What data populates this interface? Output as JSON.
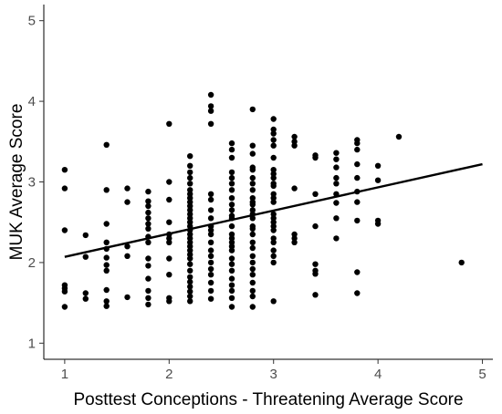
{
  "chart_data": {
    "type": "scatter",
    "xlabel": "Posttest Conceptions - Threatening Average Score",
    "ylabel": "MUK Average Score",
    "xlim": [
      0.8,
      5.1
    ],
    "ylim": [
      0.8,
      5.2
    ],
    "x_ticks": [
      "1",
      "2",
      "3",
      "4",
      "5"
    ],
    "y_ticks": [
      "1",
      "2",
      "3",
      "4",
      "5"
    ],
    "grid": false,
    "point_color": "#000000",
    "trend_line": {
      "x": [
        1.0,
        5.0
      ],
      "y": [
        2.07,
        3.22
      ]
    },
    "points": [
      [
        1.0,
        3.15
      ],
      [
        1.0,
        2.92
      ],
      [
        1.0,
        2.4
      ],
      [
        1.0,
        1.72
      ],
      [
        1.0,
        1.68
      ],
      [
        1.0,
        1.64
      ],
      [
        1.0,
        1.45
      ],
      [
        1.2,
        2.34
      ],
      [
        1.2,
        2.07
      ],
      [
        1.2,
        1.62
      ],
      [
        1.2,
        1.55
      ],
      [
        1.4,
        3.46
      ],
      [
        1.4,
        2.9
      ],
      [
        1.4,
        2.48
      ],
      [
        1.4,
        2.25
      ],
      [
        1.4,
        2.17
      ],
      [
        1.4,
        2.06
      ],
      [
        1.4,
        1.97
      ],
      [
        1.4,
        1.9
      ],
      [
        1.4,
        1.66
      ],
      [
        1.4,
        1.52
      ],
      [
        1.4,
        1.46
      ],
      [
        1.6,
        2.92
      ],
      [
        1.6,
        2.75
      ],
      [
        1.6,
        2.2
      ],
      [
        1.6,
        2.08
      ],
      [
        1.6,
        1.57
      ],
      [
        1.8,
        2.88
      ],
      [
        1.8,
        2.76
      ],
      [
        1.8,
        2.7
      ],
      [
        1.8,
        2.62
      ],
      [
        1.8,
        2.55
      ],
      [
        1.8,
        2.48
      ],
      [
        1.8,
        2.42
      ],
      [
        1.8,
        2.32
      ],
      [
        1.8,
        2.25
      ],
      [
        1.8,
        2.05
      ],
      [
        1.8,
        1.96
      ],
      [
        1.8,
        1.8
      ],
      [
        1.8,
        1.65
      ],
      [
        1.8,
        1.56
      ],
      [
        1.8,
        1.48
      ],
      [
        2.0,
        3.72
      ],
      [
        2.0,
        3.0
      ],
      [
        2.0,
        2.78
      ],
      [
        2.0,
        2.5
      ],
      [
        2.0,
        2.35
      ],
      [
        2.0,
        2.3
      ],
      [
        2.0,
        2.25
      ],
      [
        2.0,
        2.05
      ],
      [
        2.0,
        1.85
      ],
      [
        2.0,
        1.56
      ],
      [
        2.0,
        1.52
      ],
      [
        2.2,
        3.32
      ],
      [
        2.2,
        3.2
      ],
      [
        2.2,
        3.12
      ],
      [
        2.2,
        3.05
      ],
      [
        2.2,
        2.98
      ],
      [
        2.2,
        2.9
      ],
      [
        2.2,
        2.85
      ],
      [
        2.2,
        2.8
      ],
      [
        2.2,
        2.75
      ],
      [
        2.2,
        2.7
      ],
      [
        2.2,
        2.65
      ],
      [
        2.2,
        2.6
      ],
      [
        2.2,
        2.55
      ],
      [
        2.2,
        2.5
      ],
      [
        2.2,
        2.45
      ],
      [
        2.2,
        2.4
      ],
      [
        2.2,
        2.35
      ],
      [
        2.2,
        2.3
      ],
      [
        2.2,
        2.25
      ],
      [
        2.2,
        2.2
      ],
      [
        2.2,
        2.15
      ],
      [
        2.2,
        2.1
      ],
      [
        2.2,
        2.05
      ],
      [
        2.2,
        1.98
      ],
      [
        2.2,
        1.9
      ],
      [
        2.2,
        1.82
      ],
      [
        2.2,
        1.76
      ],
      [
        2.2,
        1.7
      ],
      [
        2.2,
        1.64
      ],
      [
        2.2,
        1.58
      ],
      [
        2.2,
        1.52
      ],
      [
        2.4,
        4.08
      ],
      [
        2.4,
        3.94
      ],
      [
        2.4,
        3.88
      ],
      [
        2.4,
        3.72
      ],
      [
        2.4,
        2.85
      ],
      [
        2.4,
        2.78
      ],
      [
        2.4,
        2.65
      ],
      [
        2.4,
        2.55
      ],
      [
        2.4,
        2.45
      ],
      [
        2.4,
        2.4
      ],
      [
        2.4,
        2.35
      ],
      [
        2.4,
        2.25
      ],
      [
        2.4,
        2.15
      ],
      [
        2.4,
        2.08
      ],
      [
        2.4,
        2.0
      ],
      [
        2.4,
        1.92
      ],
      [
        2.4,
        1.85
      ],
      [
        2.4,
        1.75
      ],
      [
        2.4,
        1.65
      ],
      [
        2.4,
        1.55
      ],
      [
        2.6,
        3.48
      ],
      [
        2.6,
        3.4
      ],
      [
        2.6,
        3.3
      ],
      [
        2.6,
        3.12
      ],
      [
        2.6,
        3.05
      ],
      [
        2.6,
        2.98
      ],
      [
        2.6,
        2.9
      ],
      [
        2.6,
        2.8
      ],
      [
        2.6,
        2.72
      ],
      [
        2.6,
        2.65
      ],
      [
        2.6,
        2.58
      ],
      [
        2.6,
        2.55
      ],
      [
        2.6,
        2.45
      ],
      [
        2.6,
        2.35
      ],
      [
        2.6,
        2.3
      ],
      [
        2.6,
        2.25
      ],
      [
        2.6,
        2.2
      ],
      [
        2.6,
        2.15
      ],
      [
        2.6,
        2.05
      ],
      [
        2.6,
        1.98
      ],
      [
        2.6,
        1.9
      ],
      [
        2.6,
        1.8
      ],
      [
        2.6,
        1.72
      ],
      [
        2.6,
        1.65
      ],
      [
        2.6,
        1.56
      ],
      [
        2.6,
        1.45
      ],
      [
        2.8,
        3.9
      ],
      [
        2.8,
        3.45
      ],
      [
        2.8,
        3.35
      ],
      [
        2.8,
        3.18
      ],
      [
        2.8,
        3.15
      ],
      [
        2.8,
        3.05
      ],
      [
        2.8,
        2.98
      ],
      [
        2.8,
        2.9
      ],
      [
        2.8,
        2.8
      ],
      [
        2.8,
        2.75
      ],
      [
        2.8,
        2.72
      ],
      [
        2.8,
        2.65
      ],
      [
        2.8,
        2.6
      ],
      [
        2.8,
        2.55
      ],
      [
        2.8,
        2.45
      ],
      [
        2.8,
        2.42
      ],
      [
        2.8,
        2.35
      ],
      [
        2.8,
        2.25
      ],
      [
        2.8,
        2.18
      ],
      [
        2.8,
        2.08
      ],
      [
        2.8,
        2.0
      ],
      [
        2.8,
        1.92
      ],
      [
        2.8,
        1.85
      ],
      [
        2.8,
        1.75
      ],
      [
        2.8,
        1.65
      ],
      [
        2.8,
        1.58
      ],
      [
        2.8,
        1.45
      ],
      [
        3.0,
        3.78
      ],
      [
        3.0,
        3.65
      ],
      [
        3.0,
        3.6
      ],
      [
        3.0,
        3.52
      ],
      [
        3.0,
        3.45
      ],
      [
        3.0,
        3.3
      ],
      [
        3.0,
        3.15
      ],
      [
        3.0,
        3.1
      ],
      [
        3.0,
        3.05
      ],
      [
        3.0,
        2.98
      ],
      [
        3.0,
        2.95
      ],
      [
        3.0,
        2.85
      ],
      [
        3.0,
        2.8
      ],
      [
        3.0,
        2.75
      ],
      [
        3.0,
        2.6
      ],
      [
        3.0,
        2.55
      ],
      [
        3.0,
        2.5
      ],
      [
        3.0,
        2.45
      ],
      [
        3.0,
        2.4
      ],
      [
        3.0,
        2.3
      ],
      [
        3.0,
        2.25
      ],
      [
        3.0,
        2.15
      ],
      [
        3.0,
        2.08
      ],
      [
        3.0,
        2.0
      ],
      [
        3.0,
        1.52
      ],
      [
        3.2,
        3.56
      ],
      [
        3.2,
        3.5
      ],
      [
        3.2,
        3.45
      ],
      [
        3.2,
        2.92
      ],
      [
        3.2,
        2.35
      ],
      [
        3.2,
        2.3
      ],
      [
        3.2,
        2.25
      ],
      [
        3.4,
        3.33
      ],
      [
        3.4,
        3.3
      ],
      [
        3.4,
        2.85
      ],
      [
        3.4,
        2.45
      ],
      [
        3.4,
        1.98
      ],
      [
        3.4,
        1.9
      ],
      [
        3.4,
        1.86
      ],
      [
        3.4,
        1.6
      ],
      [
        3.6,
        3.36
      ],
      [
        3.6,
        3.28
      ],
      [
        3.6,
        3.18
      ],
      [
        3.6,
        3.05
      ],
      [
        3.6,
        2.98
      ],
      [
        3.6,
        2.85
      ],
      [
        3.6,
        2.74
      ],
      [
        3.6,
        2.55
      ],
      [
        3.6,
        2.3
      ],
      [
        3.8,
        3.52
      ],
      [
        3.8,
        3.48
      ],
      [
        3.8,
        3.4
      ],
      [
        3.8,
        3.22
      ],
      [
        3.8,
        3.05
      ],
      [
        3.8,
        2.88
      ],
      [
        3.8,
        2.75
      ],
      [
        3.8,
        2.52
      ],
      [
        3.8,
        1.88
      ],
      [
        3.8,
        1.62
      ],
      [
        4.0,
        3.2
      ],
      [
        4.0,
        3.02
      ],
      [
        4.0,
        2.52
      ],
      [
        4.0,
        2.48
      ],
      [
        4.2,
        3.56
      ],
      [
        4.8,
        2.0
      ]
    ]
  }
}
